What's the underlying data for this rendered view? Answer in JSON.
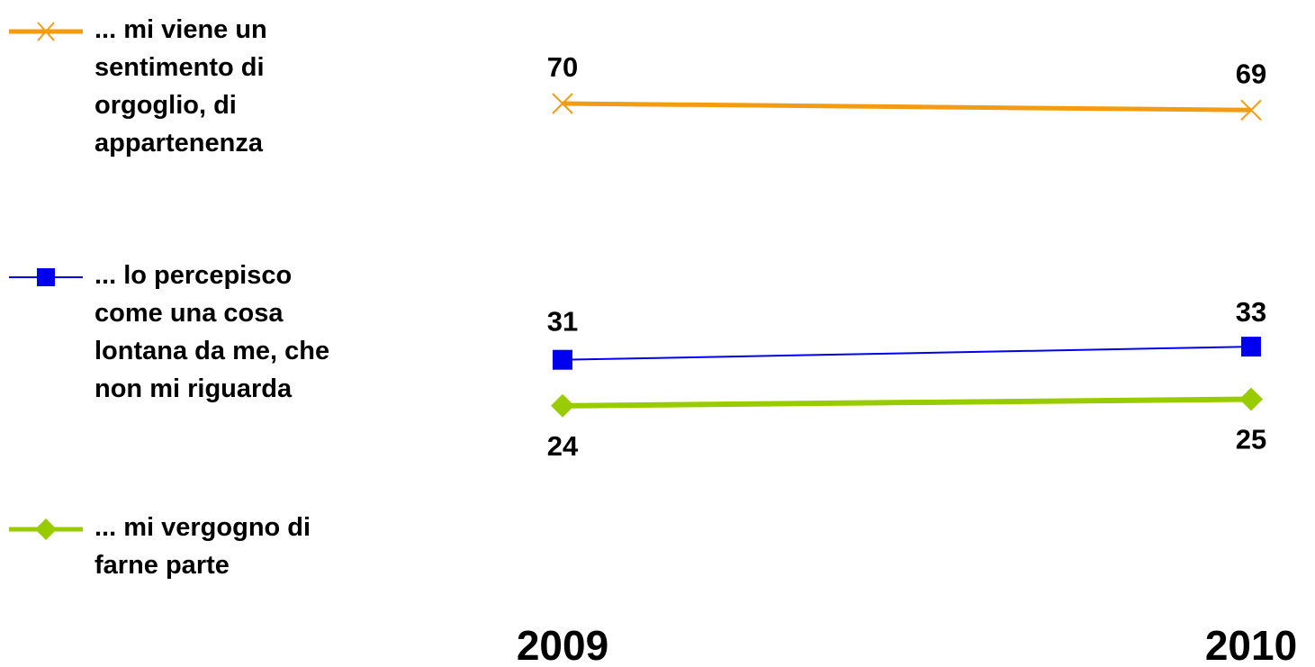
{
  "chart_data": {
    "type": "line",
    "title": "",
    "xlabel": "",
    "ylabel": "",
    "categories": [
      "2009",
      "2010"
    ],
    "series": [
      {
        "name": "... mi viene un sentimento di orgoglio, di appartenenza",
        "values": [
          70,
          69
        ],
        "color": "#f39c12",
        "marker": "x-icon"
      },
      {
        "name": "... lo percepisco come una cosa lontana da me, che non mi riguarda",
        "values": [
          31,
          33
        ],
        "color": "#0000ee",
        "marker": "square-icon"
      },
      {
        "name": "... mi vergogno di farne parte",
        "values": [
          24,
          25
        ],
        "color": "#99cc00",
        "marker": "diamond-icon"
      }
    ],
    "legend_position": "left",
    "grid": false,
    "axes_visible": false
  }
}
